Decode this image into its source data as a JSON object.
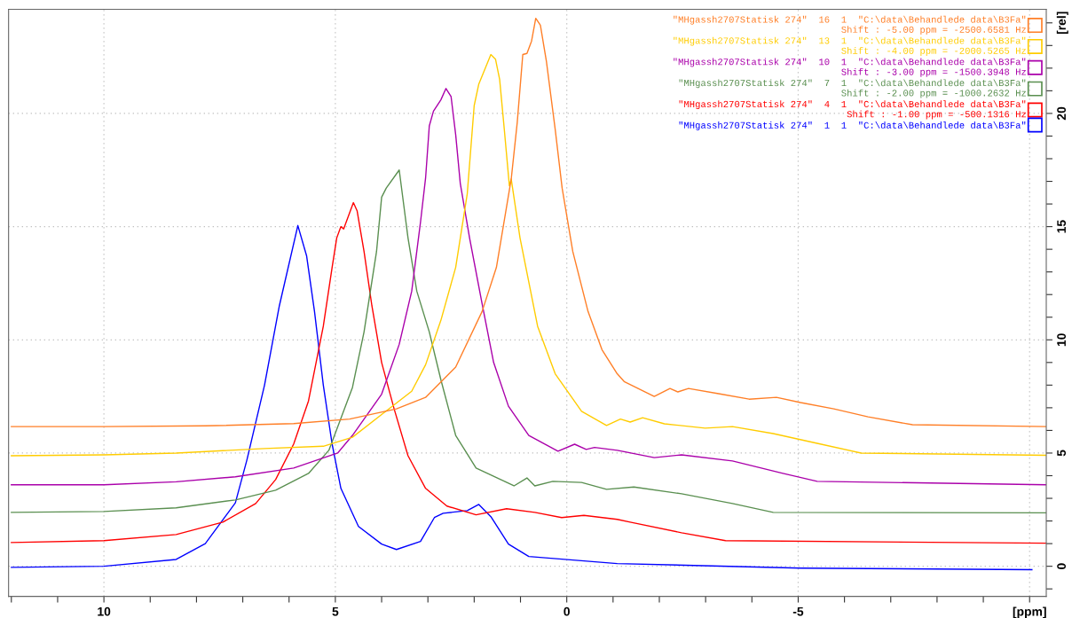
{
  "chart_data": {
    "type": "line",
    "xlim": [
      12.06,
      -10.36
    ],
    "ylim": [
      -1.33,
      24.6
    ],
    "xticks": [
      {
        "value": 12,
        "label": null
      },
      {
        "value": 11,
        "label": null
      },
      10,
      {
        "value": 9,
        "label": null
      },
      {
        "value": 8,
        "label": null
      },
      {
        "value": 7,
        "label": null
      },
      {
        "value": 6,
        "label": null
      },
      5,
      {
        "value": 4,
        "label": null
      },
      {
        "value": 3,
        "label": null
      },
      {
        "value": 2,
        "label": null
      },
      {
        "value": 1,
        "label": null
      },
      0,
      {
        "value": -1,
        "label": null
      },
      {
        "value": -2,
        "label": null
      },
      {
        "value": -3,
        "label": null
      },
      {
        "value": -4,
        "label": null
      },
      -5,
      {
        "value": -6,
        "label": null
      },
      {
        "value": -7,
        "label": null
      },
      {
        "value": -8,
        "label": null
      },
      {
        "value": -9,
        "label": null
      },
      {
        "value": -10,
        "label": "[ppm]"
      }
    ],
    "yticks": [
      {
        "value": -1,
        "label": null
      },
      0,
      {
        "value": 1,
        "label": null
      },
      {
        "value": 2,
        "label": null
      },
      {
        "value": 3,
        "label": null
      },
      {
        "value": 4,
        "label": null
      },
      5,
      {
        "value": 6,
        "label": null
      },
      {
        "value": 7,
        "label": null
      },
      {
        "value": 8,
        "label": null
      },
      {
        "value": 9,
        "label": null
      },
      10,
      {
        "value": 11,
        "label": null
      },
      {
        "value": 12,
        "label": null
      },
      {
        "value": 13,
        "label": null
      },
      {
        "value": 14,
        "label": null
      },
      15,
      {
        "value": 16,
        "label": null
      },
      {
        "value": 17,
        "label": null
      },
      {
        "value": 18,
        "label": null
      },
      {
        "value": 19,
        "label": null
      },
      20,
      {
        "value": 21,
        "label": null
      },
      {
        "value": 22,
        "label": null
      },
      {
        "value": 23,
        "label": null
      },
      {
        "value": 24,
        "label": "[rel]"
      }
    ],
    "grid": true,
    "legend": "top right",
    "line_style": "solid",
    "marker": "none",
    "series": [
      {
        "name": "\"MHgassh2707Statisk 274\"  16  1  \"C:\\data\\Behandlede data\\B3Fa\"\nShift : -5.00 ppm = -2500.6581 Hz",
        "color": "#ff7f27",
        "x": [
          12.0,
          10.0,
          7.81,
          5.9,
          4.69,
          3.68,
          3.05,
          2.4,
          1.83,
          1.52,
          1.2,
          1.07,
          0.95,
          0.86,
          0.76,
          0.67,
          0.57,
          0.44,
          0.25,
          0.1,
          -0.13,
          -0.46,
          -0.76,
          -1.09,
          -1.24,
          -1.89,
          -2.23,
          -2.4,
          -2.63,
          -3.28,
          -3.94,
          -4.53,
          -5.05,
          -5.77,
          -6.51,
          -7.47,
          -10.36
        ],
        "values": [
          6.17,
          6.17,
          6.2,
          6.3,
          6.5,
          6.95,
          7.46,
          8.8,
          11.25,
          13.2,
          17.1,
          19.6,
          22.6,
          22.65,
          23.2,
          24.2,
          23.9,
          22.3,
          19.3,
          16.7,
          13.9,
          11.25,
          9.57,
          8.5,
          8.16,
          7.5,
          7.85,
          7.7,
          7.85,
          7.62,
          7.38,
          7.46,
          7.23,
          6.95,
          6.6,
          6.25,
          6.17
        ]
      },
      {
        "name": "\"MHgassh2707Statisk 274\"  13  1  \"C:\\data\\Behandlede data\\B3Fa\"\nShift : -4.00 ppm = -2000.5265 Hz",
        "color": "#ffcc00",
        "x": [
          12.0,
          10.0,
          8.44,
          6.53,
          5.26,
          4.63,
          4.0,
          3.35,
          3.05,
          2.72,
          2.4,
          2.15,
          2.0,
          1.9,
          1.64,
          1.54,
          1.45,
          1.35,
          1.24,
          1.2,
          1.01,
          0.63,
          0.25,
          -0.32,
          -0.86,
          -1.16,
          -1.37,
          -1.64,
          -2.11,
          -2.99,
          -3.58,
          -4.46,
          -5.41,
          -6.36,
          -9.58,
          -10.36
        ],
        "values": [
          4.88,
          4.92,
          5.0,
          5.2,
          5.3,
          5.7,
          6.7,
          7.73,
          8.9,
          10.86,
          13.2,
          16.45,
          20.35,
          21.3,
          22.6,
          22.4,
          21.5,
          19.3,
          16.8,
          17.1,
          14.5,
          10.6,
          8.5,
          6.84,
          6.22,
          6.5,
          6.37,
          6.56,
          6.29,
          6.1,
          6.17,
          5.86,
          5.43,
          5.0,
          4.92,
          4.9
        ]
      },
      {
        "name": "\"MHgassh2707Statisk 274\"  10  1  \"C:\\data\\Behandlede data\\B3Fa\"\nShift : -3.00 ppm = -1500.3948 Hz",
        "color": "#aa00aa",
        "x": [
          12.0,
          10.0,
          8.44,
          7.16,
          5.9,
          4.95,
          4.63,
          4.0,
          3.62,
          3.35,
          3.16,
          3.05,
          2.97,
          2.88,
          2.72,
          2.61,
          2.5,
          2.4,
          2.3,
          2.1,
          1.83,
          1.58,
          1.26,
          0.82,
          0.19,
          -0.17,
          -0.42,
          -0.6,
          -1.09,
          -1.89,
          -2.48,
          -3.58,
          -4.67,
          -5.41,
          -10.36
        ],
        "values": [
          3.6,
          3.6,
          3.73,
          3.95,
          4.34,
          5.0,
          5.78,
          7.6,
          9.8,
          12.15,
          15.2,
          17.15,
          19.45,
          20.1,
          20.6,
          21.1,
          20.75,
          19.06,
          16.9,
          14.5,
          11.6,
          9.0,
          7.07,
          5.78,
          5.08,
          5.39,
          5.16,
          5.25,
          5.12,
          4.8,
          4.92,
          4.65,
          4.1,
          3.75,
          3.6
        ]
      },
      {
        "name": "\"MHgassh2707Statisk 274\"  7  1  \"C:\\data\\Behandlede data\\B3Fa\"\nShift : -2.00 ppm = -1000.2632 Hz",
        "color": "#5a8f50",
        "x": [
          12.0,
          10.0,
          8.44,
          7.16,
          6.29,
          5.58,
          5.14,
          4.63,
          4.38,
          4.11,
          4.0,
          3.9,
          3.62,
          3.43,
          3.24,
          2.97,
          2.72,
          2.4,
          1.96,
          1.14,
          0.86,
          0.69,
          0.3,
          -0.32,
          -0.86,
          -1.45,
          -2.48,
          -3.58,
          -4.46,
          -10.36
        ],
        "values": [
          2.38,
          2.42,
          2.58,
          2.93,
          3.36,
          4.1,
          5.12,
          7.9,
          10.35,
          13.9,
          16.3,
          16.7,
          17.5,
          14.5,
          12.15,
          10.35,
          8.24,
          5.78,
          4.34,
          3.55,
          3.9,
          3.55,
          3.75,
          3.7,
          3.4,
          3.5,
          3.2,
          2.77,
          2.38,
          2.36
        ]
      },
      {
        "name": "\"MHgassh2707Statisk 274\"  4  1  \"C:\\data\\Behandlede data\\B3Fa\"\nShift : -1.00 ppm = -500.1316 Hz",
        "color": "#ff0000",
        "x": [
          12.0,
          10.0,
          8.44,
          7.43,
          6.72,
          6.29,
          5.9,
          5.58,
          5.26,
          5.07,
          4.97,
          4.88,
          4.82,
          4.61,
          4.53,
          4.38,
          4.21,
          4.0,
          3.73,
          3.43,
          3.05,
          2.59,
          1.96,
          1.3,
          0.69,
          0.11,
          -0.37,
          -1.09,
          -1.37,
          -2.48,
          -3.43,
          -10.36
        ],
        "values": [
          1.05,
          1.13,
          1.4,
          1.95,
          2.77,
          3.83,
          5.4,
          7.3,
          10.6,
          13.2,
          14.5,
          15.0,
          14.9,
          16.06,
          15.7,
          13.9,
          11.5,
          9.0,
          6.95,
          4.88,
          3.44,
          2.66,
          2.27,
          2.54,
          2.38,
          2.15,
          2.25,
          2.07,
          1.95,
          1.48,
          1.13,
          1.02
        ]
      },
      {
        "name": "\"MHgassh2707Statisk 274\"  1  1  \"C:\\data\\Behandlede data\\B3Fa\"",
        "color": "#0000ff",
        "x": [
          12.0,
          10.0,
          8.44,
          7.81,
          7.16,
          6.91,
          6.53,
          6.21,
          5.81,
          5.62,
          5.45,
          5.26,
          5.07,
          4.88,
          4.5,
          4.0,
          3.68,
          3.16,
          2.86,
          2.67,
          2.15,
          1.9,
          1.64,
          1.26,
          0.82,
          -1.09,
          -5.05,
          -10.05
        ],
        "values": [
          -0.05,
          0.0,
          0.3,
          1.0,
          2.8,
          4.7,
          8.0,
          11.5,
          15.05,
          13.7,
          11.25,
          8.0,
          5.4,
          3.44,
          1.76,
          0.98,
          0.74,
          1.1,
          2.15,
          2.34,
          2.46,
          2.73,
          2.19,
          0.98,
          0.43,
          0.12,
          -0.08,
          -0.15
        ]
      }
    ]
  }
}
